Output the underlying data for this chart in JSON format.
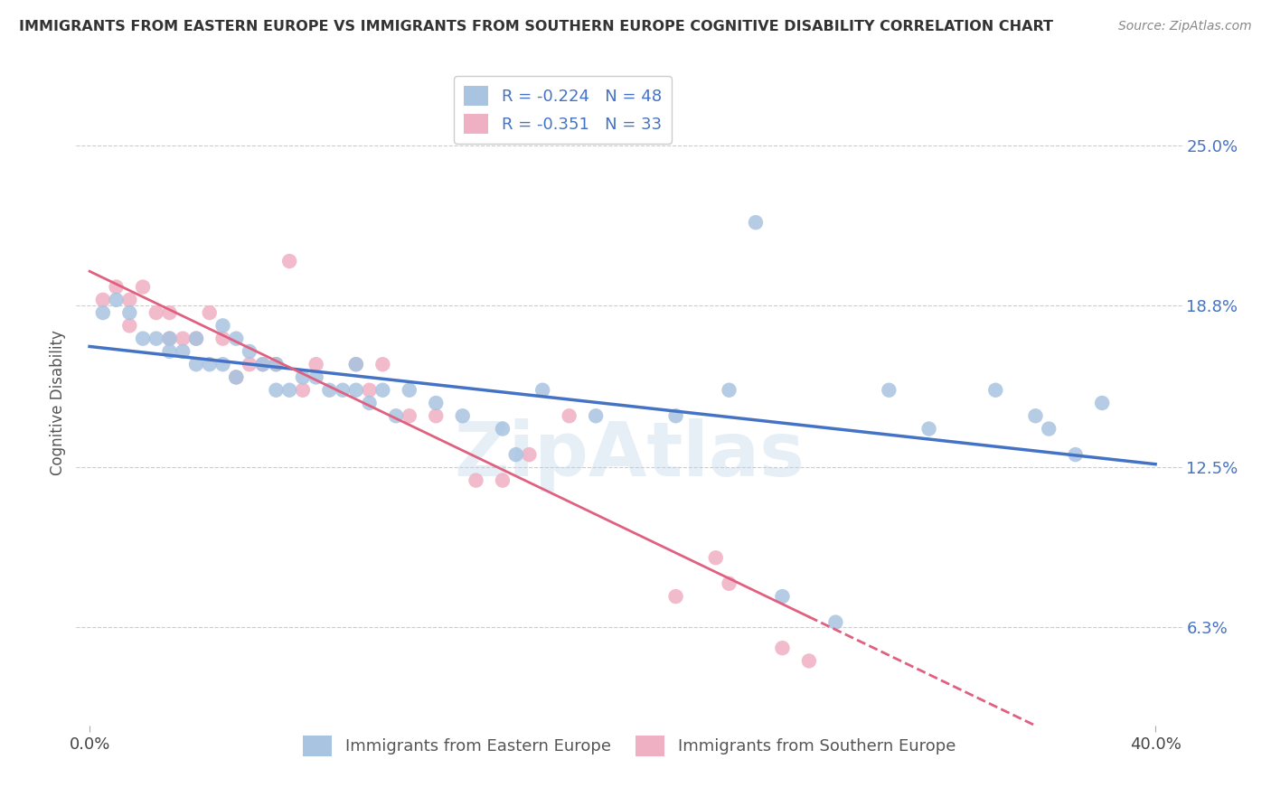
{
  "title": "IMMIGRANTS FROM EASTERN EUROPE VS IMMIGRANTS FROM SOUTHERN EUROPE COGNITIVE DISABILITY CORRELATION CHART",
  "source": "Source: ZipAtlas.com",
  "ylabel": "Cognitive Disability",
  "xlim": [
    -0.005,
    0.41
  ],
  "ylim": [
    0.025,
    0.275
  ],
  "ytick_labels": [
    "6.3%",
    "12.5%",
    "18.8%",
    "25.0%"
  ],
  "ytick_values": [
    0.063,
    0.125,
    0.188,
    0.25
  ],
  "xtick_labels": [
    "0.0%",
    "40.0%"
  ],
  "xtick_values": [
    0.0,
    0.4
  ],
  "legend_labels": [
    "Immigrants from Eastern Europe",
    "Immigrants from Southern Europe"
  ],
  "R_eastern": -0.224,
  "N_eastern": 48,
  "R_southern": -0.351,
  "N_southern": 33,
  "color_eastern": "#a8c4e0",
  "color_southern": "#f0b0c4",
  "line_color_eastern": "#4472c4",
  "line_color_southern": "#e06080",
  "background_color": "#ffffff",
  "eastern_x": [
    0.005,
    0.01,
    0.015,
    0.02,
    0.025,
    0.03,
    0.03,
    0.035,
    0.04,
    0.04,
    0.045,
    0.05,
    0.05,
    0.055,
    0.055,
    0.06,
    0.065,
    0.07,
    0.07,
    0.075,
    0.08,
    0.085,
    0.09,
    0.095,
    0.1,
    0.1,
    0.105,
    0.11,
    0.115,
    0.12,
    0.13,
    0.14,
    0.155,
    0.16,
    0.17,
    0.19,
    0.22,
    0.24,
    0.26,
    0.3,
    0.315,
    0.34,
    0.355,
    0.36,
    0.37,
    0.38,
    0.25,
    0.28
  ],
  "eastern_y": [
    0.185,
    0.19,
    0.185,
    0.175,
    0.175,
    0.175,
    0.17,
    0.17,
    0.175,
    0.165,
    0.165,
    0.165,
    0.18,
    0.175,
    0.16,
    0.17,
    0.165,
    0.165,
    0.155,
    0.155,
    0.16,
    0.16,
    0.155,
    0.155,
    0.155,
    0.165,
    0.15,
    0.155,
    0.145,
    0.155,
    0.15,
    0.145,
    0.14,
    0.13,
    0.155,
    0.145,
    0.145,
    0.155,
    0.075,
    0.155,
    0.14,
    0.155,
    0.145,
    0.14,
    0.13,
    0.15,
    0.22,
    0.065
  ],
  "southern_x": [
    0.005,
    0.01,
    0.015,
    0.015,
    0.02,
    0.025,
    0.03,
    0.03,
    0.035,
    0.04,
    0.045,
    0.05,
    0.055,
    0.06,
    0.065,
    0.07,
    0.075,
    0.08,
    0.085,
    0.1,
    0.105,
    0.11,
    0.12,
    0.13,
    0.145,
    0.155,
    0.165,
    0.18,
    0.22,
    0.235,
    0.24,
    0.26,
    0.27
  ],
  "southern_y": [
    0.19,
    0.195,
    0.19,
    0.18,
    0.195,
    0.185,
    0.185,
    0.175,
    0.175,
    0.175,
    0.185,
    0.175,
    0.16,
    0.165,
    0.165,
    0.165,
    0.205,
    0.155,
    0.165,
    0.165,
    0.155,
    0.165,
    0.145,
    0.145,
    0.12,
    0.12,
    0.13,
    0.145,
    0.075,
    0.09,
    0.08,
    0.055,
    0.05
  ]
}
